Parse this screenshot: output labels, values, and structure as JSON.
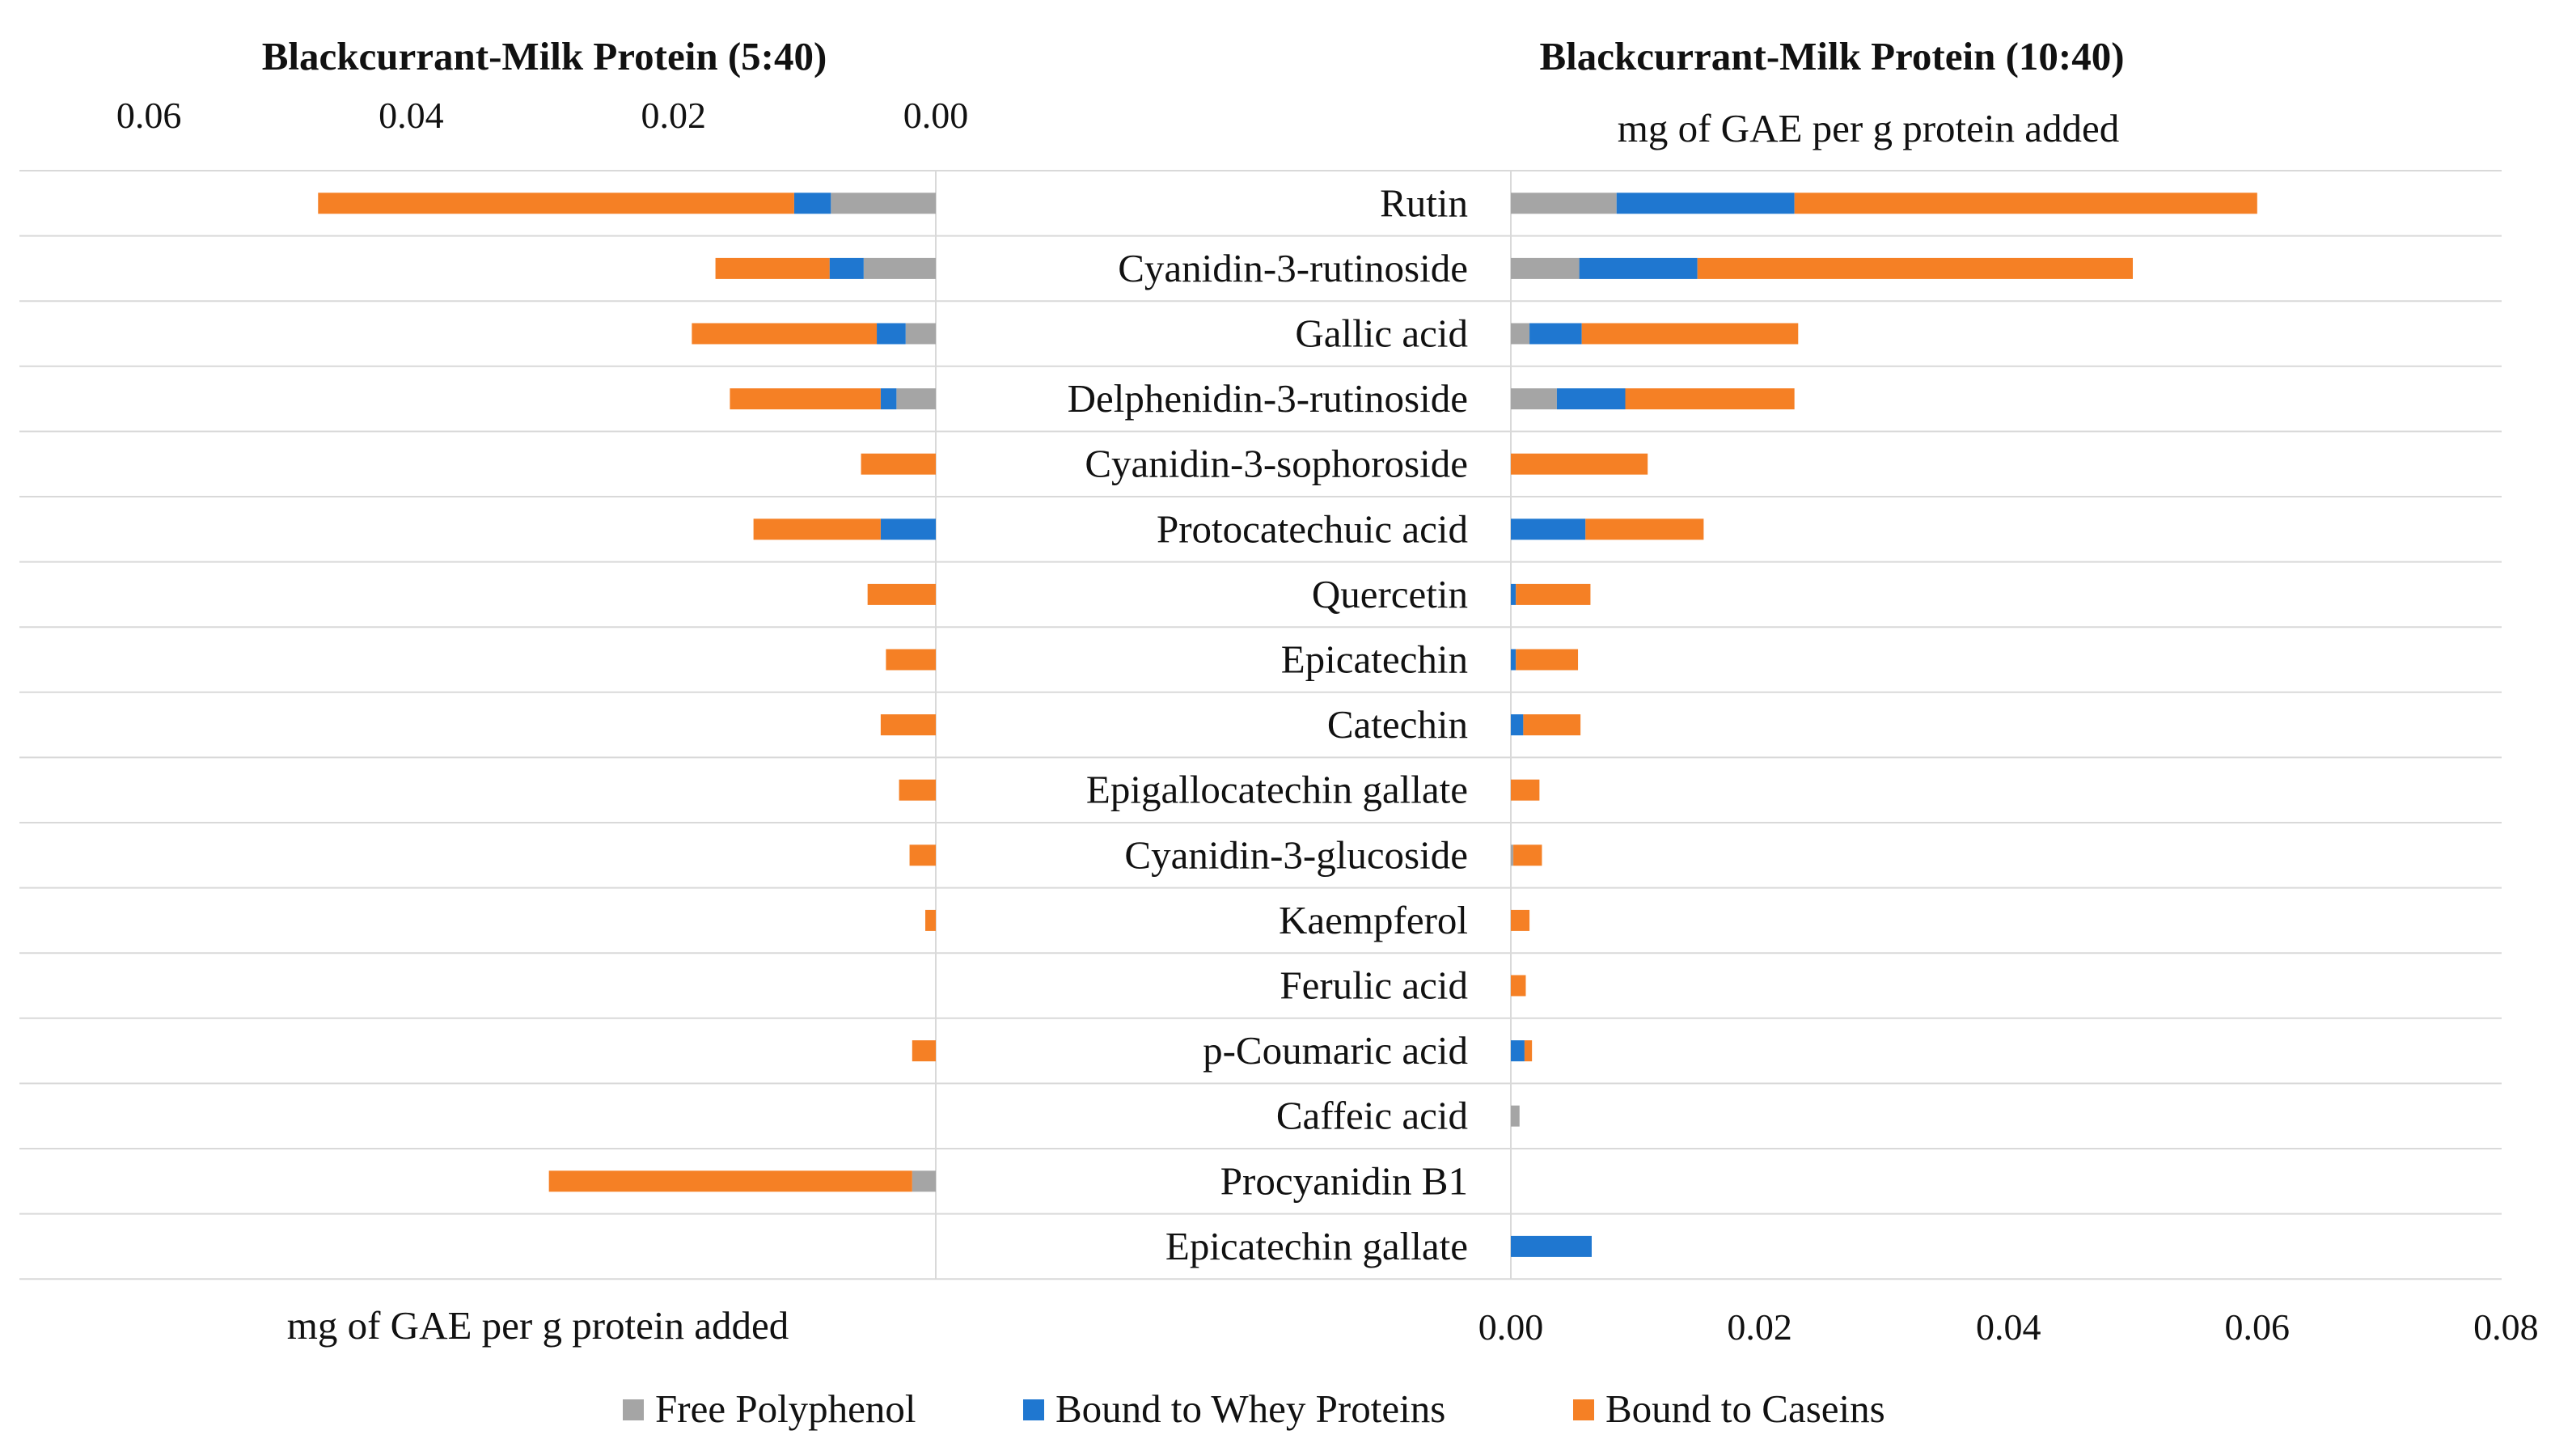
{
  "chart_data": {
    "type": "bar",
    "orientation": "horizontal",
    "stacked": true,
    "grid": true,
    "legend_position": "bottom",
    "categories": [
      "Rutin",
      "Cyanidin-3-rutinoside",
      "Gallic acid",
      "Delphenidin-3-rutinoside",
      "Cyanidin-3-sophoroside",
      "Protocatechuic acid",
      "Quercetin",
      "Epicatechin",
      "Catechin",
      "Epigallocatechin gallate",
      "Cyanidin-3-glucoside",
      "Kaempferol",
      "Ferulic acid",
      "p-Coumaric acid",
      "Caffeic acid",
      "Procyanidin B1",
      "Epicatechin gallate"
    ],
    "series_meta": [
      {
        "name": "Free Polyphenol",
        "color": "#A5A5A5"
      },
      {
        "name": "Bound to Whey Proteins",
        "color": "#1F77D0"
      },
      {
        "name": "Bound to Caseins",
        "color": "#F58025"
      }
    ],
    "panels": [
      {
        "title": "Blackcurrant-Milk Protein (5:40)",
        "axis_label": "mg of GAE per g protein added",
        "ticks": [
          "0.06",
          "0.04",
          "0.02",
          "0.00"
        ],
        "xlim": [
          0,
          0.07
        ],
        "reversed": true,
        "series": [
          {
            "name": "Free Polyphenol",
            "values": [
              0.008,
              0.0055,
              0.0023,
              0.003,
              0,
              0,
              0,
              0,
              0,
              0,
              0,
              0,
              0,
              0,
              0,
              0.0018,
              0
            ]
          },
          {
            "name": "Bound to Whey Proteins",
            "values": [
              0.0028,
              0.0026,
              0.0022,
              0.0012,
              0,
              0.0042,
              0,
              0,
              0,
              0,
              0,
              0,
              0,
              0,
              0,
              0,
              0
            ]
          },
          {
            "name": "Bound to Caseins",
            "values": [
              0.0363,
              0.0087,
              0.0141,
              0.0115,
              0.0057,
              0.0097,
              0.0052,
              0.0038,
              0.0042,
              0.0028,
              0.002,
              0.0008,
              0,
              0.0018,
              0,
              0.0277,
              0
            ]
          }
        ]
      },
      {
        "title": "Blackcurrant-Milk Protein (10:40)",
        "axis_label": "mg of GAE per g protein added",
        "ticks": [
          "0.00",
          "0.02",
          "0.04",
          "0.06",
          "0.08"
        ],
        "xlim": [
          0,
          0.08
        ],
        "reversed": false,
        "series": [
          {
            "name": "Free Polyphenol",
            "values": [
              0.0085,
              0.0055,
              0.0015,
              0.0037,
              0,
              0,
              0,
              0,
              0,
              0,
              0.0002,
              0,
              0,
              0,
              0.0007,
              0,
              0
            ]
          },
          {
            "name": "Bound to Whey Proteins",
            "values": [
              0.0143,
              0.0095,
              0.0042,
              0.0055,
              0,
              0.006,
              0.0004,
              0.0004,
              0.001,
              0,
              0,
              0,
              0,
              0.0011,
              0,
              0,
              0.0065
            ]
          },
          {
            "name": "Bound to Caseins",
            "values": [
              0.0372,
              0.035,
              0.0174,
              0.0136,
              0.011,
              0.0095,
              0.006,
              0.005,
              0.0046,
              0.0023,
              0.0023,
              0.0015,
              0.0012,
              0.0006,
              0,
              0,
              0
            ]
          }
        ]
      }
    ]
  }
}
